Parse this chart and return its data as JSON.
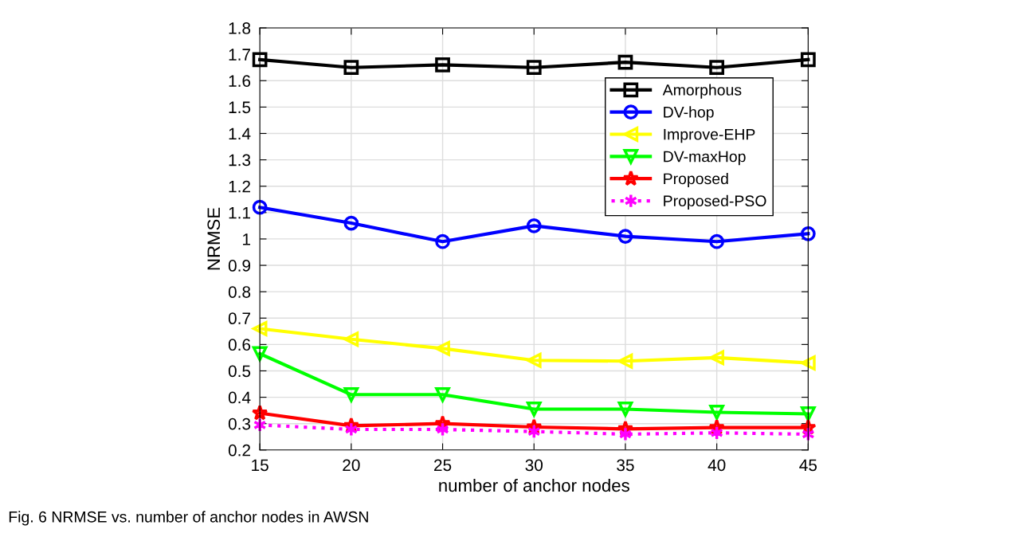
{
  "chart_data": {
    "type": "line",
    "xlabel": "number of anchor nodes",
    "ylabel": "NRMSE",
    "x": [
      15,
      20,
      25,
      30,
      35,
      40,
      45
    ],
    "series": [
      {
        "name": "Amorphous",
        "color": "#000000",
        "marker": "square",
        "line_style": "solid",
        "values": [
          1.68,
          1.65,
          1.66,
          1.65,
          1.67,
          1.65,
          1.68
        ]
      },
      {
        "name": "DV-hop",
        "color": "#0000ff",
        "marker": "circle",
        "line_style": "solid",
        "values": [
          1.12,
          1.06,
          0.99,
          1.05,
          1.01,
          0.99,
          1.02
        ]
      },
      {
        "name": "Improve-EHP",
        "color": "#ffff00",
        "marker": "triangle_left",
        "line_style": "solid",
        "values": [
          0.66,
          0.62,
          0.585,
          0.54,
          0.537,
          0.55,
          0.53
        ]
      },
      {
        "name": "DV-maxHop",
        "color": "#00ff00",
        "marker": "triangle_down",
        "line_style": "solid",
        "values": [
          0.565,
          0.41,
          0.41,
          0.355,
          0.355,
          0.343,
          0.337
        ]
      },
      {
        "name": "Proposed",
        "color": "#ff0000",
        "marker": "star",
        "line_style": "solid",
        "values": [
          0.34,
          0.292,
          0.3,
          0.287,
          0.28,
          0.285,
          0.285
        ]
      },
      {
        "name": "Proposed-PSO",
        "color": "#ff00ff",
        "marker": "cross",
        "line_style": "dotted",
        "values": [
          0.295,
          0.278,
          0.278,
          0.27,
          0.26,
          0.265,
          0.26
        ]
      }
    ],
    "xlim": [
      15,
      45
    ],
    "xticks": [
      15,
      20,
      25,
      30,
      35,
      40,
      45
    ],
    "ylim": [
      0.2,
      1.8
    ],
    "yticks": [
      0.2,
      0.3,
      0.4,
      0.5,
      0.6,
      0.7,
      0.8,
      0.9,
      1,
      1.1,
      1.2,
      1.3,
      1.4,
      1.5,
      1.6,
      1.7,
      1.8
    ],
    "grid": true,
    "legend": "top right",
    "annotations": [
      "Fig. 6 NRMSE vs. number of anchor nodes in AWSN"
    ]
  }
}
